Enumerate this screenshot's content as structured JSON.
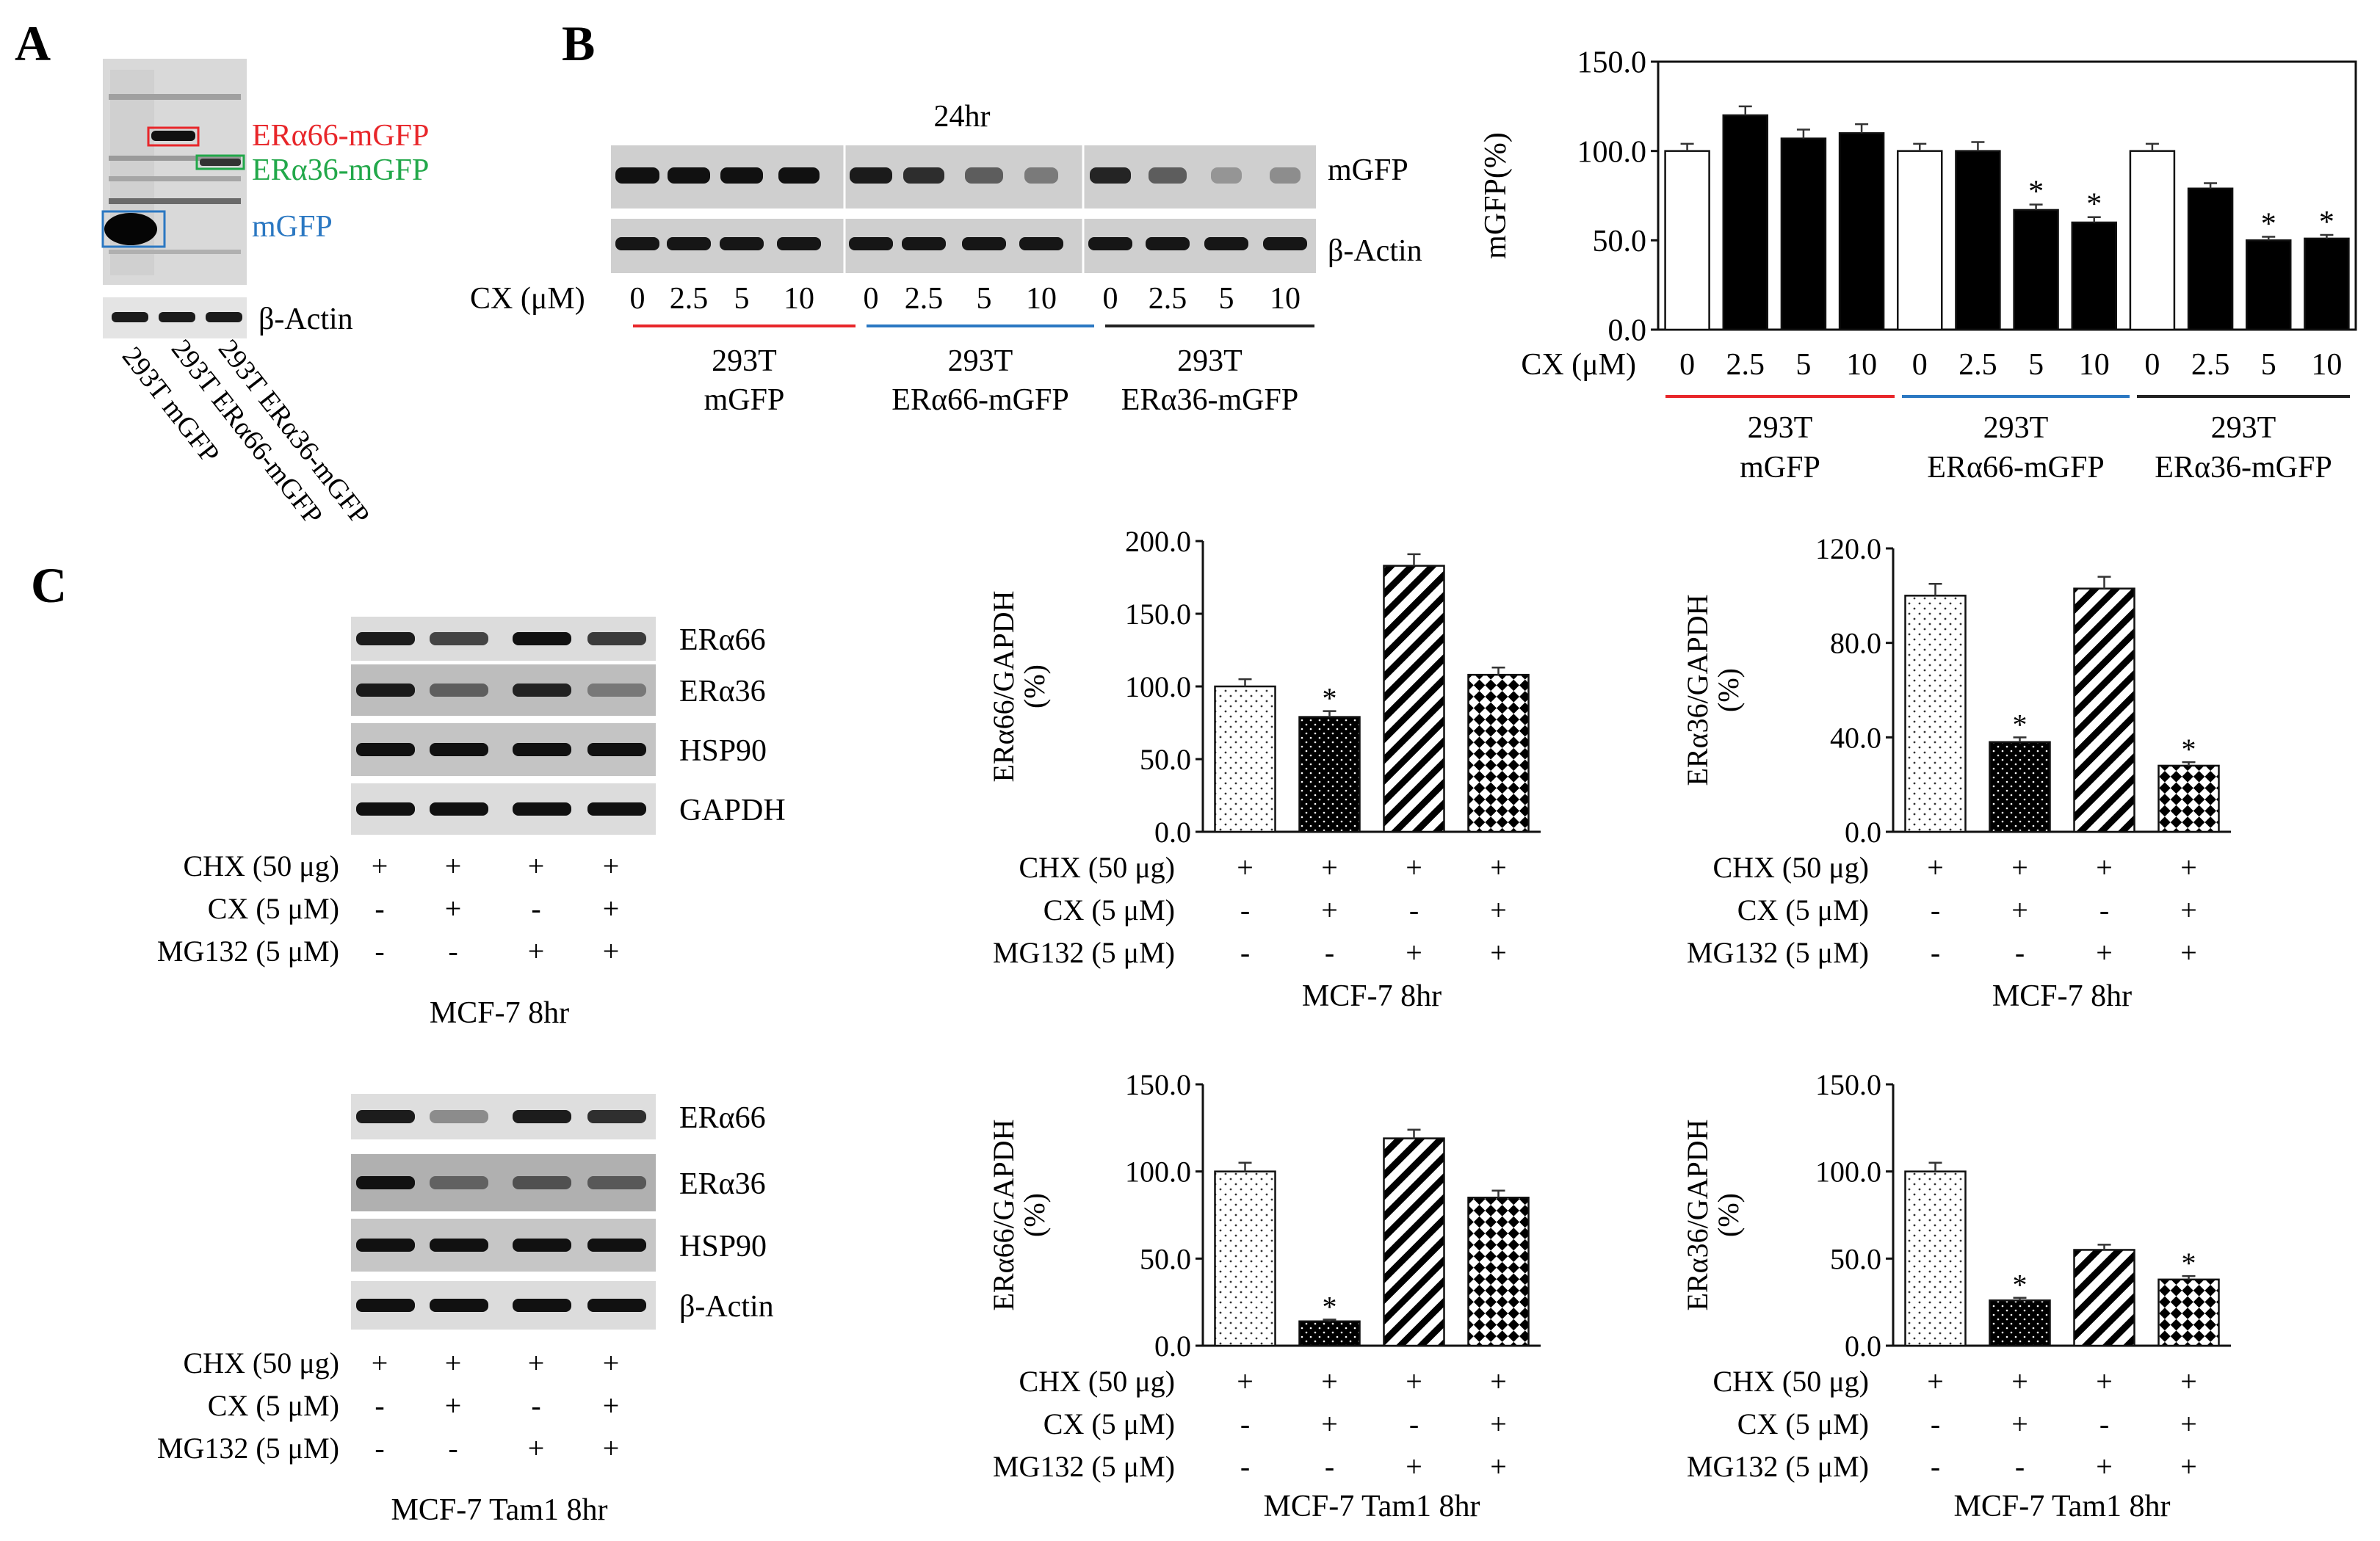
{
  "panels": {
    "A": {
      "letter": "A",
      "band_labels": {
        "era66": "ERα66-mGFP",
        "era36": "ERα36-mGFP",
        "mgfp": "mGFP"
      },
      "loading_label": "β-Actin",
      "lanes": [
        "293T mGFP",
        "293T ERα66-mGFP",
        "293T ERα36-mGFP"
      ],
      "colors": {
        "era66": "#e8262a",
        "era36": "#22a84a",
        "mgfp": "#2b78c2"
      }
    },
    "B": {
      "letter": "B",
      "time": "24hr",
      "bands": [
        "mGFP",
        "β-Actin"
      ],
      "cx_label": "CX (μM)",
      "doses": [
        "0",
        "2.5",
        "5",
        "10"
      ],
      "groups": [
        {
          "line1": "293T",
          "line2": "mGFP",
          "color": "#e8262a"
        },
        {
          "line1": "293T",
          "line2": "ERα66-mGFP",
          "color": "#2b78c2"
        },
        {
          "line1": "293T",
          "line2": "ERα36-mGFP",
          "color": "#222222"
        }
      ]
    },
    "C": {
      "letter": "C",
      "blot1": {
        "bands": [
          "ERα66",
          "ERα36",
          "HSP90",
          "GAPDH"
        ],
        "caption": "MCF-7 8hr"
      },
      "blot2": {
        "bands": [
          "ERα66",
          "ERα36",
          "HSP90",
          "β-Actin"
        ],
        "caption": "MCF-7 Tam1 8hr"
      },
      "treatments": [
        {
          "label": "CHX (50 μg)",
          "signs": [
            "+",
            "+",
            "+",
            "+"
          ]
        },
        {
          "label": "CX (5 μM)",
          "signs": [
            "-",
            "+",
            "-",
            "+"
          ]
        },
        {
          "label": "MG132 (5 μM)",
          "signs": [
            "-",
            "-",
            "+",
            "+"
          ]
        }
      ]
    }
  },
  "chart_data": [
    {
      "id": "B-bar",
      "type": "bar",
      "title": "",
      "ylabel": "mGFP(%)",
      "ylim": [
        0,
        150
      ],
      "yticks": [
        "0.0",
        "50.0",
        "100.0",
        "150.0"
      ],
      "categories": [
        "0",
        "2.5",
        "5",
        "10",
        "0",
        "2.5",
        "5",
        "10",
        "0",
        "2.5",
        "5",
        "10"
      ],
      "values": [
        100,
        120,
        107,
        110,
        100,
        100,
        67,
        60,
        100,
        79,
        50,
        51
      ],
      "errors": [
        4,
        5,
        5,
        5,
        4,
        5,
        3,
        3,
        4,
        3,
        2,
        2
      ],
      "fills": [
        "white",
        "black",
        "black",
        "black",
        "white",
        "black",
        "black",
        "black",
        "white",
        "black",
        "black",
        "black"
      ],
      "significant": [
        false,
        false,
        false,
        false,
        false,
        false,
        true,
        true,
        false,
        false,
        true,
        true
      ],
      "xlabel": "CX (μM)",
      "group_labels": [
        [
          "293T",
          "mGFP"
        ],
        [
          "293T",
          "ERα66-mGFP"
        ],
        [
          "293T",
          "ERα36-mGFP"
        ]
      ],
      "group_colors": [
        "#e8262a",
        "#2b78c2",
        "#222222"
      ]
    },
    {
      "id": "C1-bar",
      "type": "bar",
      "ylabel": [
        "ERα66/GAPDH",
        "(%)"
      ],
      "ylim": [
        0,
        200
      ],
      "yticks": [
        "0.0",
        "50.0",
        "100.0",
        "150.0",
        "200.0"
      ],
      "categories": [
        "CHX",
        "CHX+CX",
        "CHX+MG132",
        "CHX+CX+MG132"
      ],
      "values": [
        100,
        79,
        183,
        108
      ],
      "errors": [
        5,
        4,
        8,
        5
      ],
      "patterns": [
        "dots",
        "black-dots",
        "diag",
        "checker"
      ],
      "significant": [
        false,
        true,
        false,
        false
      ],
      "caption": "MCF-7 8hr"
    },
    {
      "id": "C2-bar",
      "type": "bar",
      "ylabel": [
        "ERα36/GAPDH",
        "(%)"
      ],
      "ylim": [
        0,
        120
      ],
      "yticks": [
        "0.0",
        "40.0",
        "80.0",
        "120.0"
      ],
      "categories": [
        "CHX",
        "CHX+CX",
        "CHX+MG132",
        "CHX+CX+MG132"
      ],
      "values": [
        100,
        38,
        103,
        28
      ],
      "errors": [
        5,
        2,
        5,
        1.5
      ],
      "patterns": [
        "dots",
        "black-dots",
        "diag",
        "checker"
      ],
      "significant": [
        false,
        true,
        false,
        true
      ],
      "caption": "MCF-7 8hr"
    },
    {
      "id": "C3-bar",
      "type": "bar",
      "ylabel": [
        "ERα66/GAPDH",
        "(%)"
      ],
      "ylim": [
        0,
        150
      ],
      "yticks": [
        "0.0",
        "50.0",
        "100.0",
        "150.0"
      ],
      "categories": [
        "CHX",
        "CHX+CX",
        "CHX+MG132",
        "CHX+CX+MG132"
      ],
      "values": [
        100,
        14,
        119,
        85
      ],
      "errors": [
        5,
        1,
        5,
        4
      ],
      "patterns": [
        "dots",
        "black-dots",
        "diag",
        "checker"
      ],
      "significant": [
        false,
        true,
        false,
        false
      ],
      "caption": "MCF-7 Tam1 8hr"
    },
    {
      "id": "C4-bar",
      "type": "bar",
      "ylabel": [
        "ERα36/GAPDH",
        "(%)"
      ],
      "ylim": [
        0,
        150
      ],
      "yticks": [
        "0.0",
        "50.0",
        "100.0",
        "150.0"
      ],
      "categories": [
        "CHX",
        "CHX+CX",
        "CHX+MG132",
        "CHX+CX+MG132"
      ],
      "values": [
        100,
        26,
        55,
        38
      ],
      "errors": [
        5,
        1.5,
        3,
        2
      ],
      "patterns": [
        "dots",
        "black-dots",
        "diag",
        "checker"
      ],
      "significant": [
        false,
        true,
        false,
        true
      ],
      "caption": "MCF-7 Tam1 8hr"
    }
  ],
  "significance_marker": "*"
}
